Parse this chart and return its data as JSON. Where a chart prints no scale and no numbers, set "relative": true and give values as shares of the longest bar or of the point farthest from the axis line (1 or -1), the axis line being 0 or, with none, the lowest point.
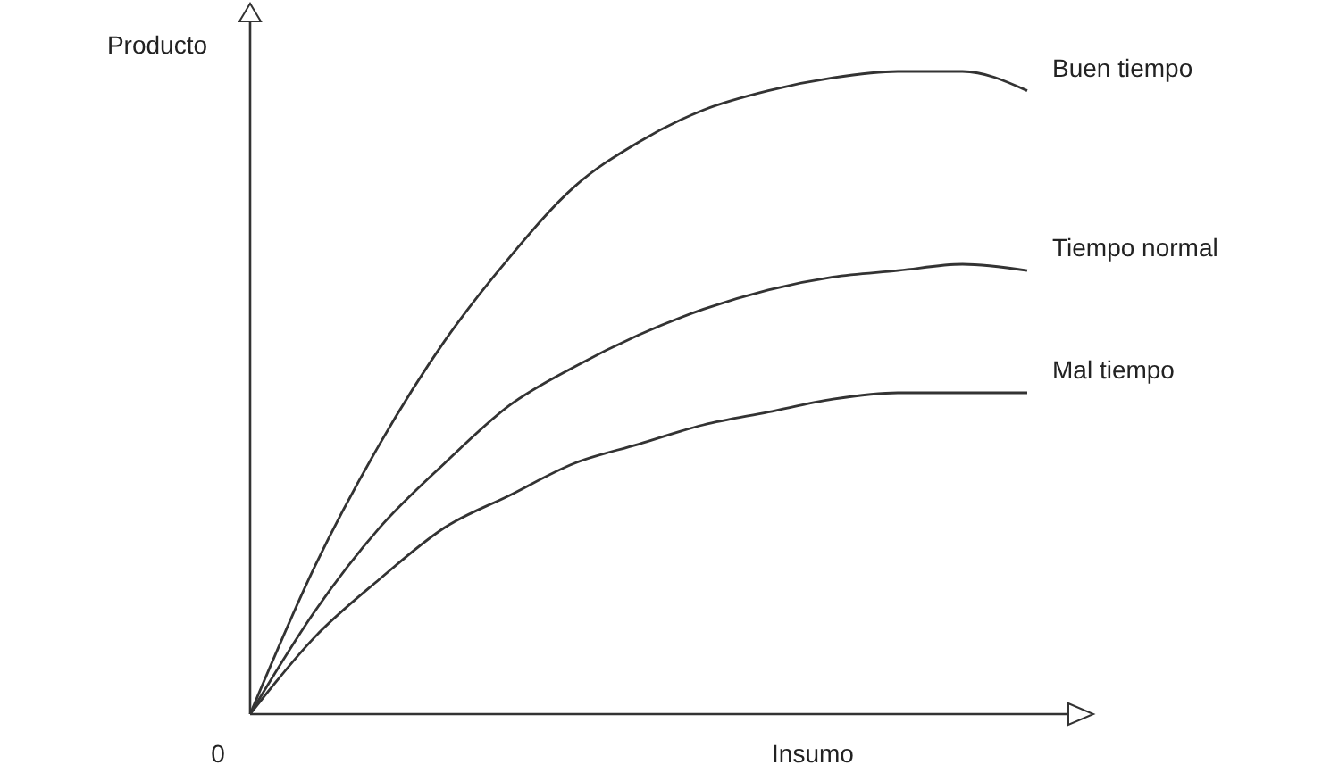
{
  "chart_data": {
    "type": "line",
    "relative": true,
    "xlabel": "Insumo",
    "ylabel": "Producto",
    "annotations": [
      "0"
    ],
    "marker": "none",
    "line_style": "solid",
    "categories": [
      null,
      null,
      null,
      null,
      null,
      null,
      null,
      null,
      null,
      null,
      null,
      null,
      null
    ],
    "series": [
      {
        "name": "Buen tiempo",
        "color": "#333333",
        "values": [
          0,
          0.23,
          0.42,
          0.58,
          0.71,
          0.82,
          0.89,
          0.94,
          0.97,
          0.99,
          1,
          1,
          0.97
        ]
      },
      {
        "name": "Tiempo normal",
        "color": "#333333",
        "values": [
          0,
          0.16,
          0.29,
          0.39,
          0.48,
          0.54,
          0.59,
          0.63,
          0.66,
          0.68,
          0.69,
          0.7,
          0.69
        ]
      },
      {
        "name": "Mal tiempo",
        "color": "#333333",
        "values": [
          0,
          0.12,
          0.21,
          0.29,
          0.34,
          0.39,
          0.42,
          0.45,
          0.47,
          0.49,
          0.5,
          0.5,
          0.5
        ]
      }
    ]
  }
}
